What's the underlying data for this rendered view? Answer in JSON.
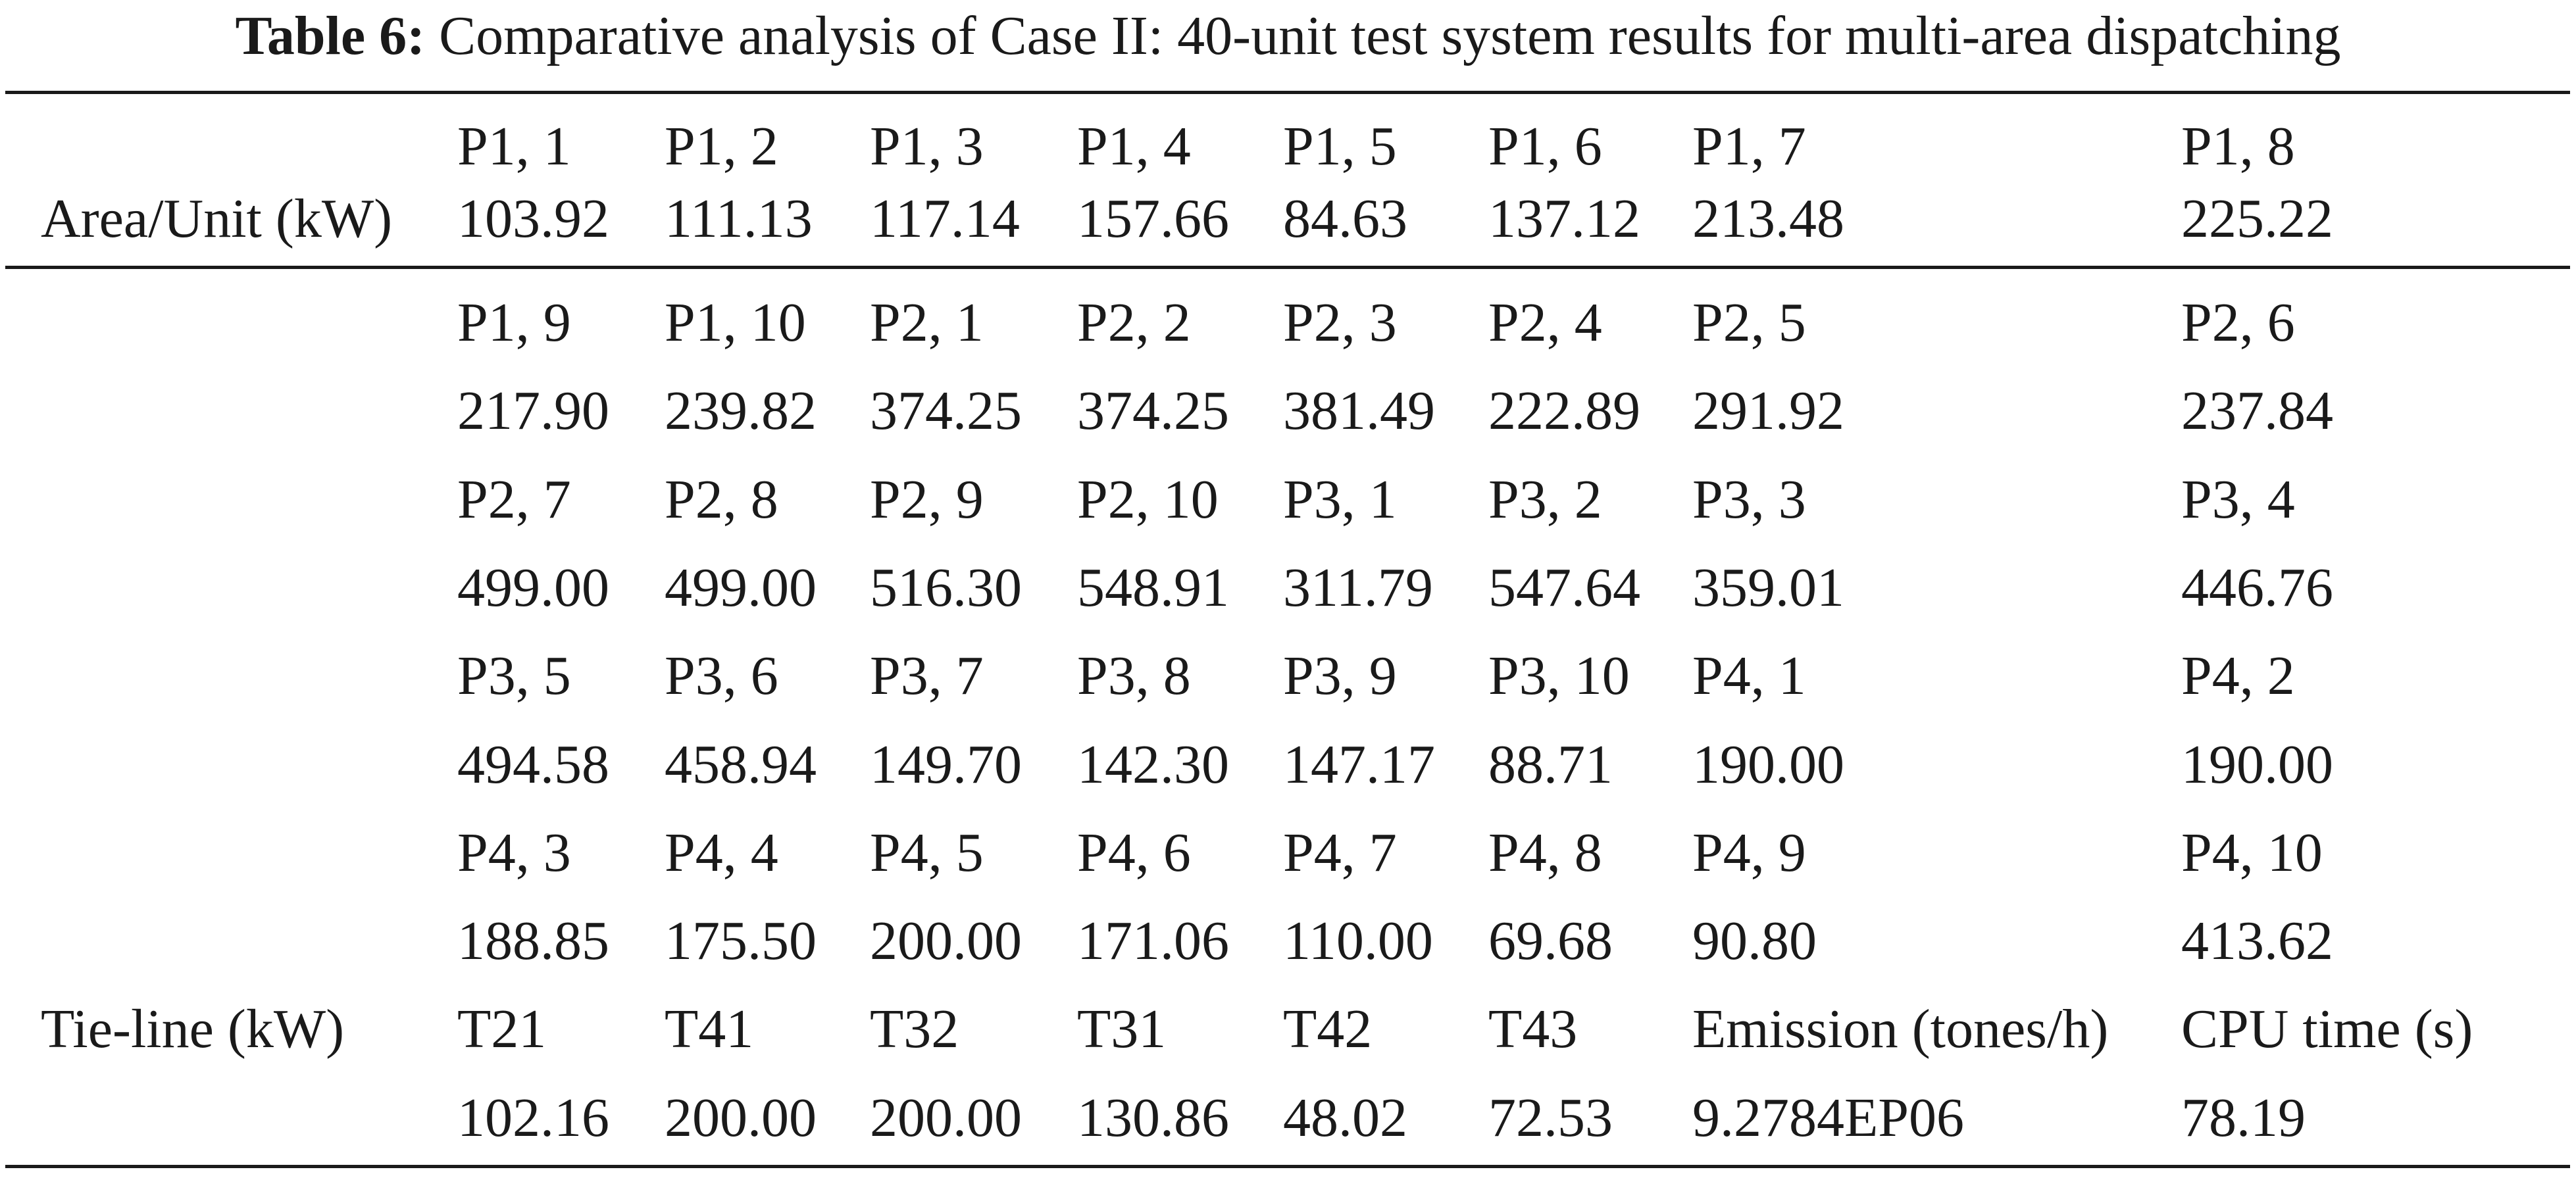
{
  "caption": {
    "label": "Table 6:",
    "text": "Comparative analysis of Case II: 40-unit test system results for multi-area dispatching"
  },
  "header": {
    "row_label": "Area/Unit (kW)",
    "units": [
      "P1, 1",
      "P1, 2",
      "P1, 3",
      "P1, 4",
      "P1, 5",
      "P1, 6",
      "P1, 7",
      "P1, 8"
    ],
    "values": [
      "103.92",
      "111.13",
      "117.14",
      "157.66",
      "84.63",
      "137.12",
      "213.48",
      "225.22"
    ]
  },
  "body": [
    {
      "label": "",
      "cells": [
        "P1, 9",
        "P1, 10",
        "P2, 1",
        "P2, 2",
        "P2, 3",
        "P2, 4",
        "P2, 5",
        "P2, 6"
      ]
    },
    {
      "label": "",
      "cells": [
        "217.90",
        "239.82",
        "374.25",
        "374.25",
        "381.49",
        "222.89",
        "291.92",
        "237.84"
      ]
    },
    {
      "label": "",
      "cells": [
        "P2, 7",
        "P2, 8",
        "P2, 9",
        "P2, 10",
        "P3, 1",
        "P3, 2",
        "P3, 3",
        "P3, 4"
      ]
    },
    {
      "label": "",
      "cells": [
        "499.00",
        "499.00",
        "516.30",
        "548.91",
        "311.79",
        "547.64",
        "359.01",
        "446.76"
      ]
    },
    {
      "label": "",
      "cells": [
        "P3, 5",
        "P3, 6",
        "P3, 7",
        "P3, 8",
        "P3, 9",
        "P3, 10",
        "P4, 1",
        "P4, 2"
      ]
    },
    {
      "label": "",
      "cells": [
        "494.58",
        "458.94",
        "149.70",
        "142.30",
        "147.17",
        "88.71",
        "190.00",
        "190.00"
      ]
    },
    {
      "label": "",
      "cells": [
        "P4, 3",
        "P4, 4",
        "P4, 5",
        "P4, 6",
        "P4, 7",
        "P4, 8",
        "P4, 9",
        "P4, 10"
      ]
    },
    {
      "label": "",
      "cells": [
        "188.85",
        "175.50",
        "200.00",
        "171.06",
        "110.00",
        "69.68",
        "90.80",
        "413.62"
      ]
    },
    {
      "label": "Tie-line (kW)",
      "cells": [
        "T21",
        "T41",
        "T32",
        "T31",
        "T42",
        "T43",
        "Emission (tones/h)",
        "CPU time (s)"
      ]
    },
    {
      "label": "",
      "cells": [
        "102.16",
        "200.00",
        "200.00",
        "130.86",
        "48.02",
        "72.53",
        "9.2784EP06",
        "78.19"
      ]
    }
  ]
}
